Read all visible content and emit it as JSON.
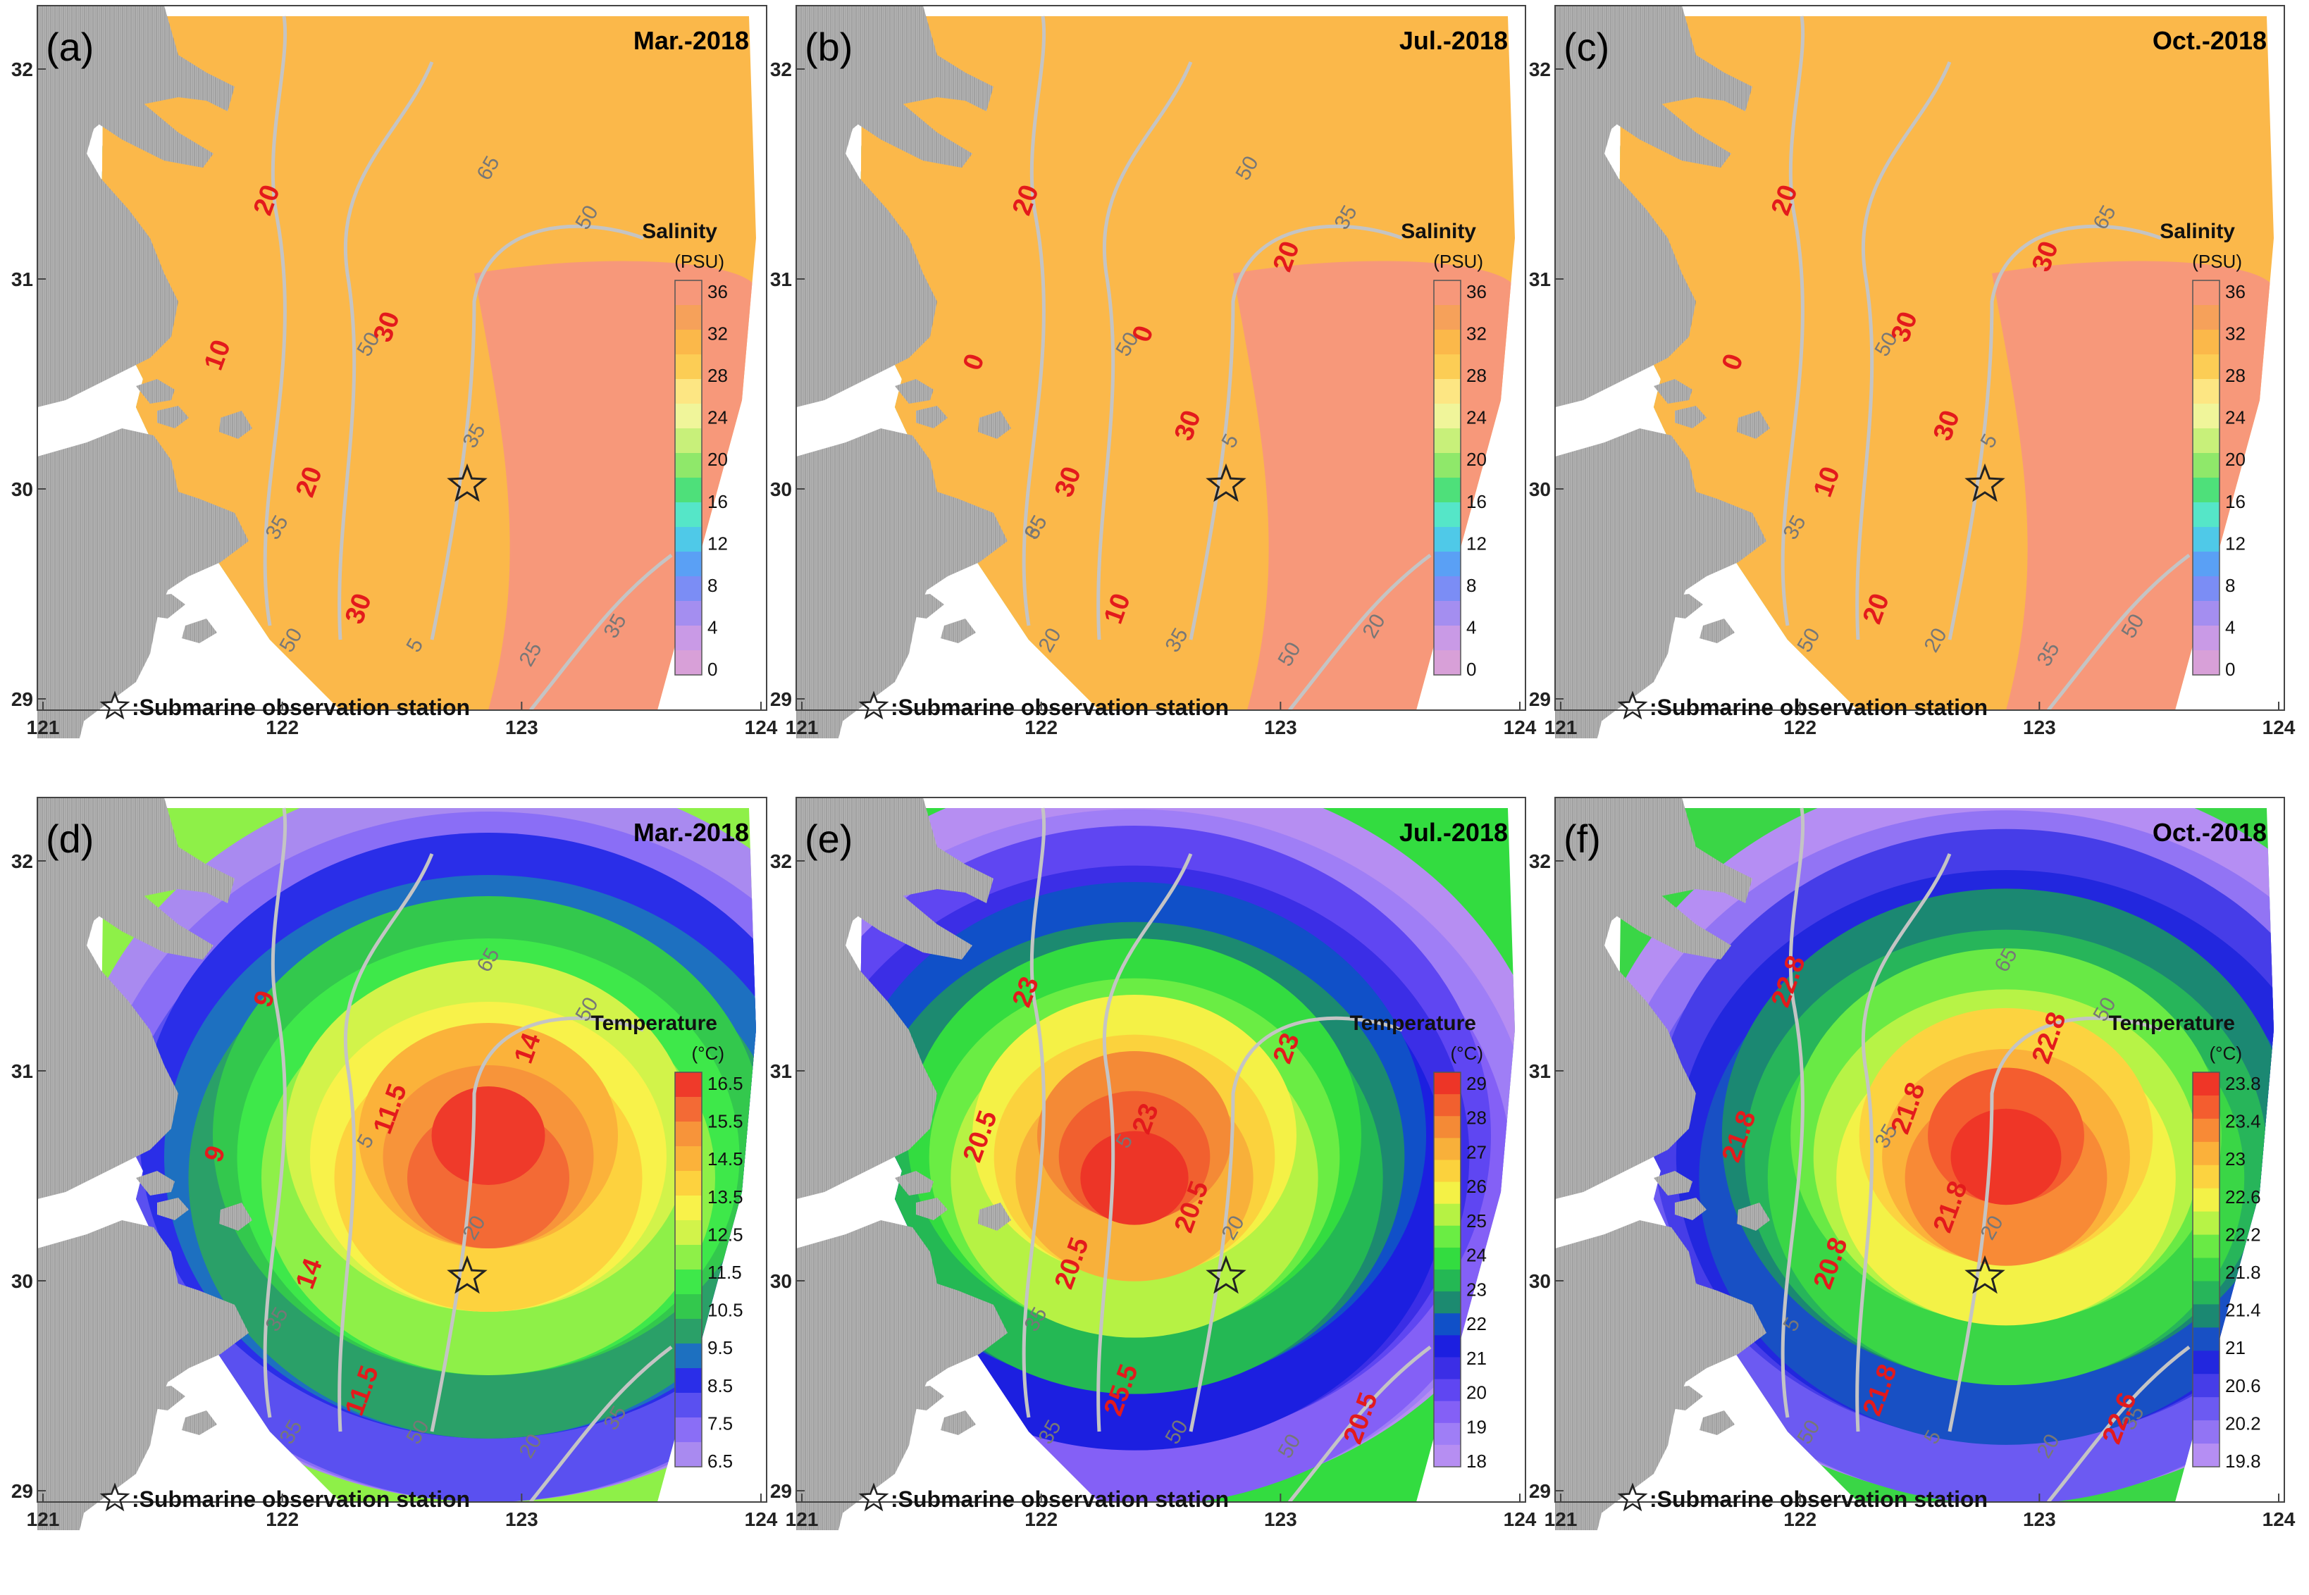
{
  "axes": {
    "x_ticks": [
      "121",
      "122",
      "123",
      "124"
    ],
    "y_ticks": [
      "32",
      "31",
      "30",
      "29"
    ]
  },
  "station_legend": ":Submarine observation station",
  "salinity_colorbar": {
    "title": "Salinity",
    "unit": "(PSU)",
    "ticks": [
      "36",
      "32",
      "28",
      "24",
      "20",
      "16",
      "12",
      "8",
      "4",
      "0"
    ]
  },
  "temperature_colorbars": {
    "title": "Temperature",
    "unit": "(°C)",
    "mar": [
      "16.5",
      "15.5",
      "14.5",
      "13.5",
      "12.5",
      "11.5",
      "10.5",
      "9.5",
      "8.5",
      "7.5",
      "6.5"
    ],
    "jul": [
      "29",
      "28",
      "27",
      "26",
      "25",
      "24",
      "23",
      "22",
      "21",
      "20",
      "19",
      "18"
    ],
    "oct": [
      "23.8",
      "23.4",
      "23",
      "22.6",
      "22.2",
      "21.8",
      "21.4",
      "21",
      "20.6",
      "20.2",
      "19.8"
    ]
  },
  "panels": [
    {
      "label": "(a)",
      "title": "Mar.-2018",
      "variable": "salinity",
      "isolines": [
        "20",
        "10",
        "30",
        "20",
        "30"
      ],
      "depths": [
        "35",
        "50",
        "35",
        "50",
        "5",
        "25",
        "35",
        "50",
        "65"
      ]
    },
    {
      "label": "(b)",
      "title": "Jul.-2018",
      "variable": "salinity",
      "isolines": [
        "20",
        "0",
        "0",
        "30",
        "10",
        "20",
        "30"
      ],
      "depths": [
        "35",
        "50",
        "5",
        "20",
        "35",
        "50",
        "20",
        "35",
        "50",
        "65"
      ]
    },
    {
      "label": "(c)",
      "title": "Oct.-2018",
      "variable": "salinity",
      "isolines": [
        "20",
        "0",
        "30",
        "10",
        "20",
        "30",
        "30"
      ],
      "depths": [
        "35",
        "50",
        "5",
        "50",
        "20",
        "35",
        "50",
        "65"
      ]
    },
    {
      "label": "(d)",
      "title": "Mar.-2018",
      "variable": "temperature",
      "isolines": [
        "9",
        "9",
        "11.5",
        "14",
        "11.5",
        "14"
      ],
      "depths": [
        "35",
        "5",
        "20",
        "35",
        "50",
        "20",
        "35",
        "50",
        "65"
      ]
    },
    {
      "label": "(e)",
      "title": "Jul.-2018",
      "variable": "temperature",
      "isolines": [
        "23",
        "20.5",
        "23",
        "20.5",
        "25.5",
        "23",
        "20.5",
        "20.5"
      ],
      "depths": [
        "35",
        "5",
        "20",
        "35",
        "50",
        "50"
      ]
    },
    {
      "label": "(f)",
      "title": "Oct.-2018",
      "variable": "temperature",
      "isolines": [
        "22.8",
        "21.8",
        "21.8",
        "20.8",
        "21.8",
        "22.8",
        "21.8",
        "22.6"
      ],
      "depths": [
        "5",
        "35",
        "20",
        "50",
        "5",
        "20",
        "35",
        "50",
        "65"
      ]
    }
  ],
  "colors": {
    "land": "#b4b4b4",
    "isoline": "#e31a1c",
    "depth_contour": "#c4c4c4",
    "salinity_scale": [
      "#d8a0d8",
      "#c99ae6",
      "#a48ef0",
      "#7b8df5",
      "#5aa0f5",
      "#4fc9e8",
      "#55e6c8",
      "#4ee07a",
      "#8fe86a",
      "#c8f07a",
      "#f0f59a",
      "#fde683",
      "#fccd55",
      "#fbb84a",
      "#f6a15a",
      "#f7987a"
    ],
    "mar_temp_scale": [
      "#a98af0",
      "#8a6ef6",
      "#5a50f0",
      "#2a2ee8",
      "#1d70c0",
      "#2aa068",
      "#33c84d",
      "#3ee84a",
      "#8ef048",
      "#d2f34a",
      "#f8f24a",
      "#fdd23e",
      "#fbb23a",
      "#f7943a",
      "#f36a35",
      "#ef3a2a"
    ],
    "jul_temp_scale": [
      "#b68ef2",
      "#9f7ef6",
      "#8460f6",
      "#5f46f2",
      "#3b2ee6",
      "#1c1fe0",
      "#1050c8",
      "#1c8a70",
      "#24b854",
      "#33dc40",
      "#6aed44",
      "#b6f244",
      "#f4f146",
      "#fbd23d",
      "#f8b03a",
      "#f48a36",
      "#f1602f",
      "#ed3527"
    ],
    "oct_temp_scale": [
      "#b58ef3",
      "#9274f4",
      "#6c5af2",
      "#463de8",
      "#2227de",
      "#1850c4",
      "#1b8872",
      "#27b55a",
      "#3ad646",
      "#69ea45",
      "#b7f346",
      "#f3f247",
      "#fcd340",
      "#fbb13a",
      "#f88a36",
      "#f45d2f",
      "#ef3627"
    ]
  }
}
